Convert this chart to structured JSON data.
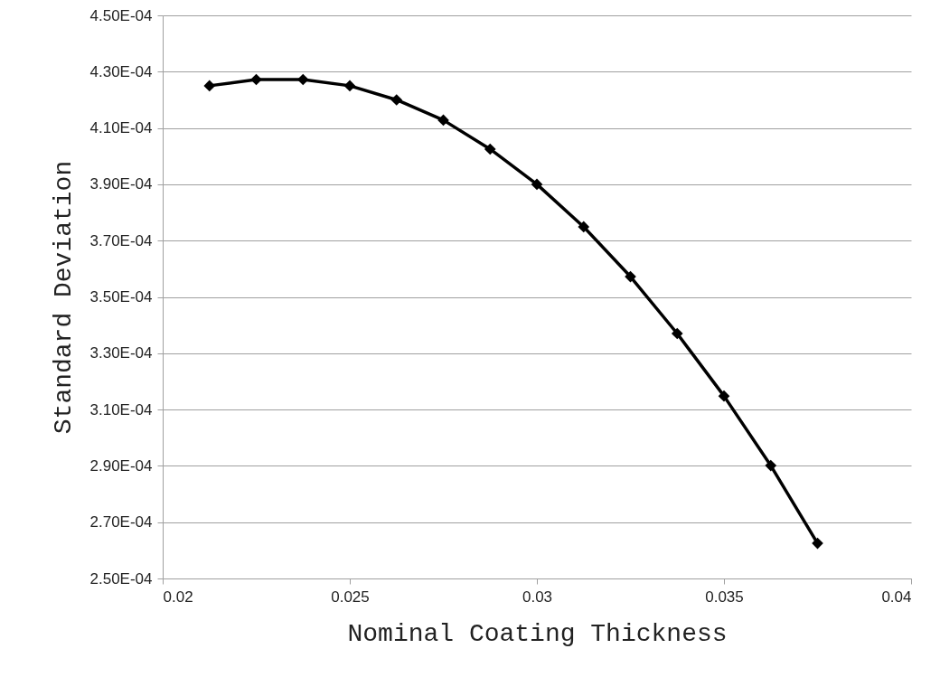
{
  "chart_data": {
    "type": "line",
    "xlabel": "Nominal Coating Thickness",
    "ylabel": "Standard Deviation",
    "x": [
      0.02125,
      0.0225,
      0.02375,
      0.025,
      0.02625,
      0.0275,
      0.02875,
      0.03,
      0.03125,
      0.0325,
      0.03375,
      0.035,
      0.03625,
      0.0375
    ],
    "series": [
      {
        "color": "#000000",
        "values": [
          0.000425,
          0.0004272,
          0.0004272,
          0.000425,
          0.00042,
          0.0004128,
          0.0004025,
          0.00039,
          0.0003749,
          0.0003572,
          0.000337,
          0.0003148,
          0.0002901,
          0.0002625
        ]
      }
    ],
    "xlim": [
      0.02,
      0.04
    ],
    "xticks": [
      0.02,
      0.025,
      0.03,
      0.035,
      0.04
    ],
    "ylim": [
      0.00025,
      0.00045
    ],
    "yticks": [
      {
        "value": 0.00025,
        "label": "2.50E-04"
      },
      {
        "value": 0.00027,
        "label": "2.70E-04"
      },
      {
        "value": 0.00029,
        "label": "2.90E-04"
      },
      {
        "value": 0.00031,
        "label": "3.10E-04"
      },
      {
        "value": 0.00033,
        "label": "3.30E-04"
      },
      {
        "value": 0.00035,
        "label": "3.50E-04"
      },
      {
        "value": 0.00037,
        "label": "3.70E-04"
      },
      {
        "value": 0.00039,
        "label": "3.90E-04"
      },
      {
        "value": 0.00041,
        "label": "4.10E-04"
      },
      {
        "value": 0.00043,
        "label": "4.30E-04"
      },
      {
        "value": 0.00045,
        "label": "4.50E-04"
      }
    ],
    "grid": "y",
    "marker": "diamond",
    "line_style": "solid"
  }
}
